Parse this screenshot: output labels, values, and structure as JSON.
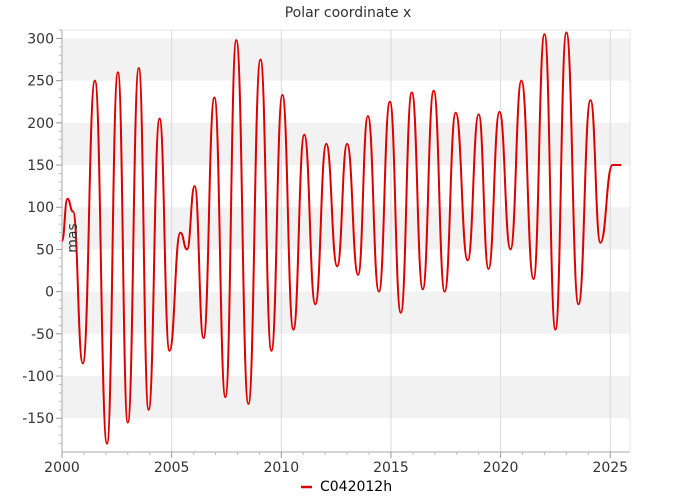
{
  "chart_data": {
    "type": "line",
    "title": "Polar coordinate x",
    "xlabel": "",
    "ylabel": "mas",
    "xlim": [
      2000,
      2025.9
    ],
    "ylim": [
      -190,
      310
    ],
    "x_ticks": [
      2000,
      2005,
      2010,
      2015,
      2020,
      2025
    ],
    "x_tick_labels": [
      "2000",
      "2005",
      "2010",
      "2015",
      "2020",
      "2025"
    ],
    "y_ticks": [
      -150,
      -100,
      -50,
      0,
      50,
      100,
      150,
      200,
      250,
      300
    ],
    "y_tick_labels": [
      "-150",
      "-100",
      "-50",
      "0",
      "50",
      "100",
      "150",
      "200",
      "250",
      "300"
    ],
    "grid": true,
    "legend_position": "bottom-center",
    "colors": {
      "series": "#dd0000",
      "band": "#f2f2f2",
      "grid": "#d9d9d9",
      "axis": "#999999"
    },
    "series": [
      {
        "name": "C042012h",
        "x": [
          2000.0,
          2000.25,
          2000.5,
          2000.95,
          2001.5,
          2002.05,
          2002.55,
          2003.0,
          2003.5,
          2003.95,
          2004.45,
          2004.9,
          2005.4,
          2005.7,
          2006.05,
          2006.45,
          2006.95,
          2007.45,
          2007.95,
          2008.5,
          2009.05,
          2009.55,
          2010.05,
          2010.55,
          2011.05,
          2011.55,
          2012.05,
          2012.55,
          2013.0,
          2013.5,
          2013.95,
          2014.45,
          2014.95,
          2015.45,
          2015.95,
          2016.45,
          2016.95,
          2017.45,
          2017.95,
          2018.5,
          2019.0,
          2019.45,
          2019.95,
          2020.45,
          2020.95,
          2021.5,
          2022.0,
          2022.5,
          2023.0,
          2023.55,
          2024.1,
          2024.55,
          2025.1,
          2025.5
        ],
        "y": [
          60,
          110,
          95,
          -85,
          250,
          -180,
          260,
          -155,
          265,
          -140,
          205,
          -70,
          70,
          50,
          125,
          -55,
          230,
          -125,
          298,
          -133,
          275,
          -70,
          233,
          -45,
          186,
          -15,
          175,
          30,
          175,
          20,
          208,
          0,
          225,
          -25,
          236,
          3,
          238,
          0,
          212,
          37,
          210,
          27,
          213,
          50,
          250,
          15,
          305,
          -45,
          307,
          -15,
          227,
          58,
          150,
          150
        ]
      }
    ]
  }
}
